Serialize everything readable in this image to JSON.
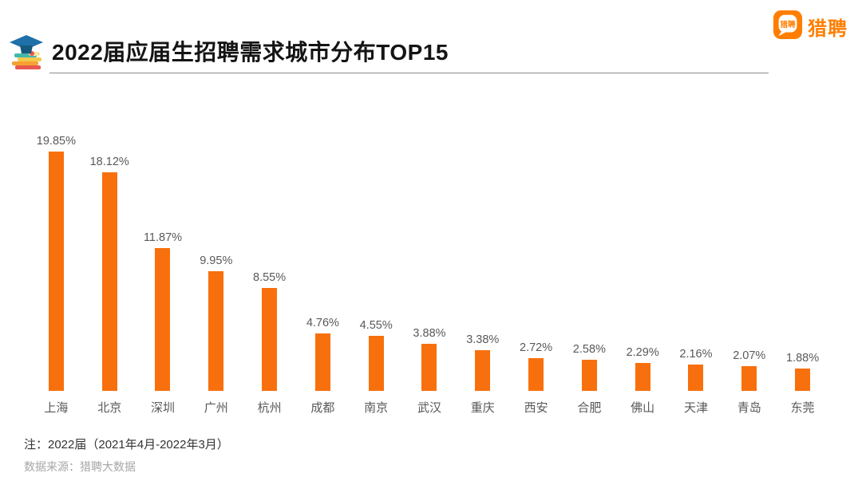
{
  "header": {
    "title": "2022届应届生招聘需求城市分布TOP15",
    "title_icon": "graduation-cap-books-icon",
    "logo_text": "猎聘",
    "logo_icon": "liepin-speech-bubble-icon"
  },
  "chart_data": {
    "type": "bar",
    "title": "2022届应届生招聘需求城市分布TOP15",
    "categories": [
      "上海",
      "北京",
      "深圳",
      "广州",
      "杭州",
      "成都",
      "南京",
      "武汉",
      "重庆",
      "西安",
      "合肥",
      "佛山",
      "天津",
      "青岛",
      "东莞"
    ],
    "values": [
      19.85,
      18.12,
      11.87,
      9.95,
      8.55,
      4.76,
      4.55,
      3.88,
      3.38,
      2.72,
      2.58,
      2.29,
      2.16,
      2.07,
      1.88
    ],
    "value_labels": [
      "19.85%",
      "18.12%",
      "11.87%",
      "9.95%",
      "8.55%",
      "4.76%",
      "4.55%",
      "3.88%",
      "3.38%",
      "2.72%",
      "2.58%",
      "2.29%",
      "2.16%",
      "2.07%",
      "1.88%"
    ],
    "ylabel": "",
    "xlabel": "",
    "ylim": [
      0,
      21
    ],
    "grid": false,
    "legend": false,
    "bar_color": "#F8700D",
    "label_color": "#595959"
  },
  "footer": {
    "note": "注：2022届（2021年4月-2022年3月）",
    "source": "数据来源：猎聘大数据"
  },
  "colors": {
    "accent_orange": "#FF7E00",
    "bar_orange": "#F8700D",
    "title_black": "#141414",
    "underline_gray": "#8c8c8c",
    "note_dark": "#333333",
    "source_gray": "#a6a6a6"
  }
}
